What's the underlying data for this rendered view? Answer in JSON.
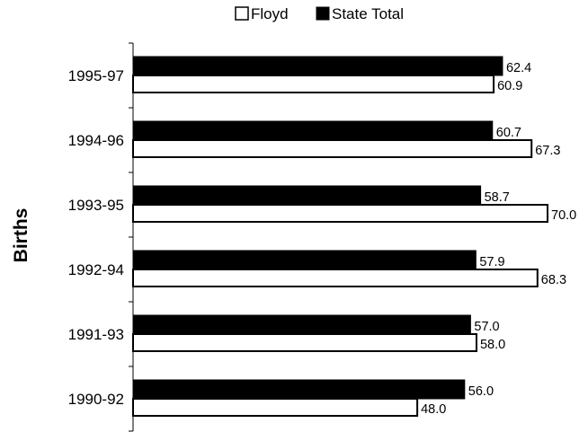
{
  "chart_data": {
    "type": "bar",
    "orientation": "horizontal",
    "ylabel": "Births",
    "categories": [
      "1995-97",
      "1994-96",
      "1993-95",
      "1992-94",
      "1991-93",
      "1990-92"
    ],
    "series": [
      {
        "name": "Floyd",
        "color": "#ffffff",
        "values": [
          60.9,
          67.3,
          70.0,
          68.3,
          58.0,
          48.0
        ],
        "labels": [
          "60.9",
          "67.3",
          "70.0",
          "68.3",
          "58.0",
          "48.0"
        ]
      },
      {
        "name": "State Total",
        "color": "#000000",
        "values": [
          62.4,
          60.7,
          58.7,
          57.9,
          57.0,
          56.0
        ],
        "labels": [
          "62.4",
          "60.7",
          "58.7",
          "57.9",
          "57.0",
          "56.0"
        ]
      }
    ],
    "xlim": [
      0,
      70
    ],
    "legend": "top"
  }
}
